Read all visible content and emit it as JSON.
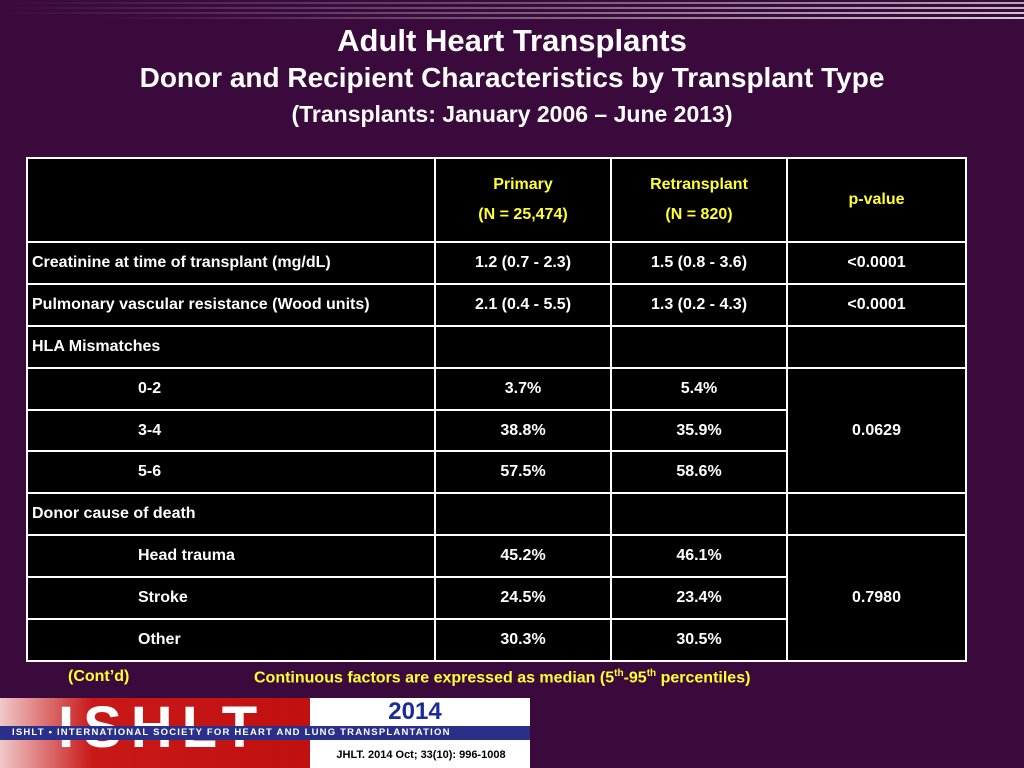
{
  "title": {
    "line1": "Adult Heart Transplants",
    "line2": "Donor and Recipient Characteristics by Transplant Type",
    "line3": "(Transplants: January 2006 – June 2013)"
  },
  "table": {
    "headers": {
      "blank": "",
      "primary_name": "Primary",
      "primary_n": "(N = 25,474)",
      "retransplant_name": "Retransplant",
      "retransplant_n": "(N = 820)",
      "pvalue": "p-value"
    },
    "rows": {
      "creatinine": {
        "label": "Creatinine at time of transplant (mg/dL)",
        "primary": "1.2 (0.7 - 2.3)",
        "retransplant": "1.5 (0.8 - 3.6)",
        "pvalue": "<0.0001"
      },
      "pvr": {
        "label": "Pulmonary vascular resistance (Wood units)",
        "primary": "2.1 (0.4 - 5.5)",
        "retransplant": "1.3 (0.2 - 4.3)",
        "pvalue": "<0.0001"
      },
      "hla_header": {
        "label": "HLA Mismatches"
      },
      "hla_0_2": {
        "label": "0-2",
        "primary": "3.7%",
        "retransplant": "5.4%"
      },
      "hla_3_4": {
        "label": "3-4",
        "primary": "38.8%",
        "retransplant": "35.9%"
      },
      "hla_5_6": {
        "label": "5-6",
        "primary": "57.5%",
        "retransplant": "58.6%"
      },
      "hla_pvalue": "0.0629",
      "death_header": {
        "label": "Donor cause of death"
      },
      "head_trauma": {
        "label": "Head trauma",
        "primary": "45.2%",
        "retransplant": "46.1%"
      },
      "stroke": {
        "label": "Stroke",
        "primary": "24.5%",
        "retransplant": "23.4%"
      },
      "other": {
        "label": "Other",
        "primary": "30.3%",
        "retransplant": "30.5%"
      },
      "death_pvalue": "0.7980"
    }
  },
  "footnotes": {
    "contd": "(Cont’d)",
    "continuous_pre": "Continuous factors are expressed as median (5",
    "sup1": "th",
    "mid": "-95",
    "sup2": "th",
    "post": " percentiles)"
  },
  "logo": {
    "word": "ISHLT",
    "band": "ISHLT • INTERNATIONAL SOCIETY FOR HEART AND LUNG TRANSPLANTATION",
    "year": "2014",
    "citation": "JHLT. 2014 Oct; 33(10): 996-1008"
  },
  "colors": {
    "background": "#3a0a3c",
    "header_text": "#ffff33",
    "table_bg": "#000000",
    "logo_red": "#c81818",
    "logo_blue": "#2a2f8a"
  }
}
